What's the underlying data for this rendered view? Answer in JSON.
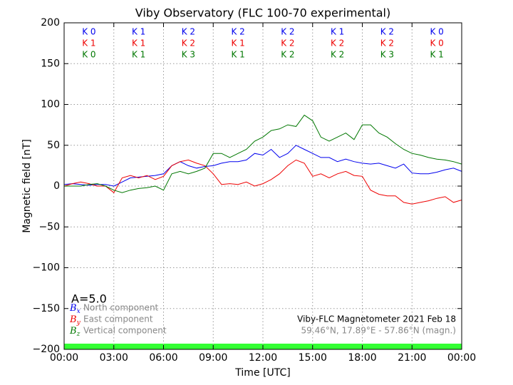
{
  "chart_data": {
    "type": "line",
    "title": "Viby Observatory (FLC 100-70 experimental)",
    "xlabel": "Time [UTC]",
    "ylabel": "Magnetic field [nT]",
    "x": [
      0,
      0.5,
      1,
      1.5,
      2,
      2.5,
      3,
      3.5,
      4,
      4.5,
      5,
      5.5,
      6,
      6.5,
      7,
      7.5,
      8,
      8.5,
      9,
      9.5,
      10,
      10.5,
      11,
      11.5,
      12,
      12.5,
      13,
      13.5,
      14,
      14.5,
      15,
      15.5,
      16,
      16.5,
      17,
      17.5,
      18,
      18.5,
      19,
      19.5,
      20,
      20.5,
      21,
      21.5,
      22,
      22.5,
      23,
      23.5,
      24
    ],
    "xlim": [
      0,
      24
    ],
    "xticks": [
      {
        "value": 0,
        "label": "00:00"
      },
      {
        "value": 3,
        "label": "03:00"
      },
      {
        "value": 6,
        "label": "06:00"
      },
      {
        "value": 9,
        "label": "09:00"
      },
      {
        "value": 12,
        "label": "12:00"
      },
      {
        "value": 15,
        "label": "15:00"
      },
      {
        "value": 18,
        "label": "18:00"
      },
      {
        "value": 21,
        "label": "21:00"
      },
      {
        "value": 24,
        "label": "00:00"
      }
    ],
    "ylim": [
      -200,
      200
    ],
    "yticks": [
      {
        "value": -200,
        "label": "−200"
      },
      {
        "value": -150,
        "label": "−150"
      },
      {
        "value": -100,
        "label": "−100"
      },
      {
        "value": -50,
        "label": "−50"
      },
      0,
      50,
      100,
      150,
      200
    ],
    "grid": true,
    "series": [
      {
        "name": "North component",
        "symbol": "B",
        "symbol_sub": "x",
        "color": "#0000ee",
        "values": [
          2,
          3,
          2,
          1,
          2,
          2,
          0,
          5,
          10,
          11,
          12,
          13,
          15,
          25,
          30,
          25,
          22,
          24,
          25,
          28,
          30,
          30,
          32,
          40,
          38,
          45,
          35,
          40,
          50,
          45,
          40,
          35,
          35,
          30,
          33,
          30,
          28,
          27,
          28,
          25,
          22,
          27,
          16,
          15,
          15,
          17,
          20,
          22,
          18
        ]
      },
      {
        "name": "East component",
        "symbol": "B",
        "symbol_sub": "y",
        "color": "#ee0000",
        "values": [
          0,
          3,
          5,
          3,
          0,
          0,
          -8,
          10,
          13,
          10,
          13,
          8,
          12,
          25,
          30,
          32,
          28,
          25,
          15,
          2,
          3,
          2,
          5,
          0,
          3,
          8,
          15,
          25,
          32,
          28,
          12,
          15,
          10,
          15,
          18,
          13,
          12,
          -5,
          -10,
          -12,
          -12,
          -20,
          -22,
          -20,
          -18,
          -15,
          -13,
          -20,
          -17
        ]
      },
      {
        "name": "Vertical component",
        "symbol": "B",
        "symbol_sub": "z",
        "color": "#007700",
        "values": [
          0,
          0,
          0,
          2,
          3,
          0,
          -5,
          -8,
          -5,
          -3,
          -2,
          0,
          -5,
          15,
          18,
          15,
          18,
          22,
          40,
          40,
          35,
          40,
          45,
          55,
          60,
          68,
          70,
          75,
          73,
          87,
          80,
          60,
          55,
          60,
          65,
          57,
          75,
          75,
          65,
          60,
          52,
          45,
          40,
          38,
          35,
          33,
          32,
          30,
          27
        ]
      }
    ],
    "k_indices": [
      {
        "color": "#0000ee",
        "labels": [
          "K 0",
          "K 1",
          "K 2",
          "K 2",
          "K 2",
          "K 1",
          "K 2",
          "K 0"
        ]
      },
      {
        "color": "#ee0000",
        "labels": [
          "K 1",
          "K 1",
          "K 2",
          "K 1",
          "K 2",
          "K 2",
          "K 2",
          "K 0"
        ]
      },
      {
        "color": "#007700",
        "labels": [
          "K 0",
          "K 1",
          "K 3",
          "K 1",
          "K 2",
          "K 2",
          "K 3",
          "K 1"
        ]
      }
    ],
    "activity_label": "A=5.0",
    "footer": [
      "Viby-FLC Magnetometer 2021 Feb 18",
      "59.46°N, 17.89°E - 57.86°N (magn.)"
    ]
  }
}
